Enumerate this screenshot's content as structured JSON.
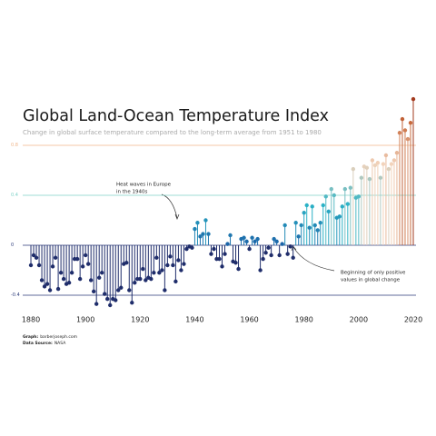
{
  "chart_data": {
    "type": "lollipop",
    "title": "Global Land-Ocean Temperature Index",
    "subtitle": "Change in global surface temperature compared to the long-term average from 1951 to 1980",
    "x": [
      1880,
      1881,
      1882,
      1883,
      1884,
      1885,
      1886,
      1887,
      1888,
      1889,
      1890,
      1891,
      1892,
      1893,
      1894,
      1895,
      1896,
      1897,
      1898,
      1899,
      1900,
      1901,
      1902,
      1903,
      1904,
      1905,
      1906,
      1907,
      1908,
      1909,
      1910,
      1911,
      1912,
      1913,
      1914,
      1915,
      1916,
      1917,
      1918,
      1919,
      1920,
      1921,
      1922,
      1923,
      1924,
      1925,
      1926,
      1927,
      1928,
      1929,
      1930,
      1931,
      1932,
      1933,
      1934,
      1935,
      1936,
      1937,
      1938,
      1939,
      1940,
      1941,
      1942,
      1943,
      1944,
      1945,
      1946,
      1947,
      1948,
      1949,
      1950,
      1951,
      1952,
      1953,
      1954,
      1955,
      1956,
      1957,
      1958,
      1959,
      1960,
      1961,
      1962,
      1963,
      1964,
      1965,
      1966,
      1967,
      1968,
      1969,
      1970,
      1971,
      1972,
      1973,
      1974,
      1975,
      1976,
      1977,
      1978,
      1979,
      1980,
      1981,
      1982,
      1983,
      1984,
      1985,
      1986,
      1987,
      1988,
      1989,
      1990,
      1991,
      1992,
      1993,
      1994,
      1995,
      1996,
      1997,
      1998,
      1999,
      2000,
      2001,
      2002,
      2003,
      2004,
      2005,
      2006,
      2007,
      2008,
      2009,
      2010,
      2011,
      2012,
      2013,
      2014,
      2015,
      2016,
      2017,
      2018,
      2019,
      2020
    ],
    "values": [
      -0.16,
      -0.08,
      -0.1,
      -0.16,
      -0.28,
      -0.33,
      -0.31,
      -0.36,
      -0.17,
      -0.1,
      -0.35,
      -0.22,
      -0.27,
      -0.31,
      -0.3,
      -0.22,
      -0.11,
      -0.11,
      -0.27,
      -0.17,
      -0.08,
      -0.15,
      -0.28,
      -0.37,
      -0.47,
      -0.26,
      -0.22,
      -0.39,
      -0.43,
      -0.48,
      -0.43,
      -0.44,
      -0.36,
      -0.34,
      -0.15,
      -0.14,
      -0.36,
      -0.46,
      -0.3,
      -0.27,
      -0.27,
      -0.19,
      -0.28,
      -0.26,
      -0.27,
      -0.22,
      -0.1,
      -0.22,
      -0.2,
      -0.36,
      -0.16,
      -0.09,
      -0.16,
      -0.29,
      -0.12,
      -0.2,
      -0.15,
      -0.03,
      -0.01,
      -0.02,
      0.13,
      0.18,
      0.07,
      0.09,
      0.2,
      0.09,
      -0.07,
      -0.03,
      -0.11,
      -0.11,
      -0.17,
      -0.07,
      0.01,
      0.08,
      -0.13,
      -0.14,
      -0.19,
      0.05,
      0.06,
      0.03,
      -0.03,
      0.06,
      0.03,
      0.05,
      -0.2,
      -0.11,
      -0.06,
      -0.02,
      -0.08,
      0.05,
      0.03,
      -0.08,
      0.01,
      0.16,
      -0.07,
      -0.01,
      -0.1,
      0.18,
      0.07,
      0.16,
      0.26,
      0.32,
      0.14,
      0.31,
      0.16,
      0.12,
      0.18,
      0.32,
      0.39,
      0.27,
      0.45,
      0.4,
      0.22,
      0.23,
      0.31,
      0.45,
      0.33,
      0.46,
      0.61,
      0.38,
      0.39,
      0.54,
      0.63,
      0.62,
      0.53,
      0.68,
      0.64,
      0.66,
      0.54,
      0.65,
      0.72,
      0.61,
      0.65,
      0.68,
      0.74,
      0.9,
      1.01,
      0.92,
      0.85,
      0.98,
      1.17
    ],
    "xlim": [
      1877,
      2021
    ],
    "ylim": [
      -0.47,
      1.3
    ],
    "xticks": [
      1880,
      1900,
      1920,
      1940,
      1960,
      1980,
      2000,
      2020
    ],
    "yticks": [
      0.8,
      0.4,
      0,
      -0.4
    ],
    "grid": true,
    "grid_colors": [
      "#f0b58a",
      "#7fd3c9",
      "#2b3a7a",
      "#2b3a7a"
    ],
    "negative_color": "#1f2d6b",
    "positive_colors": [
      "#1b63a8",
      "#2bb3c6",
      "#f2d3bb",
      "#c86a3c",
      "#8a1a0a"
    ],
    "annotations": [
      {
        "lines": [
          "Heat waves in Europe",
          "in the 1940s"
        ]
      },
      {
        "lines": [
          "Beginning of only positive",
          "values in global change"
        ]
      }
    ],
    "credits": [
      {
        "label": "Graph:",
        "text": "barberjoseph.com"
      },
      {
        "label": "Data Source:",
        "text": "NASA"
      }
    ]
  }
}
